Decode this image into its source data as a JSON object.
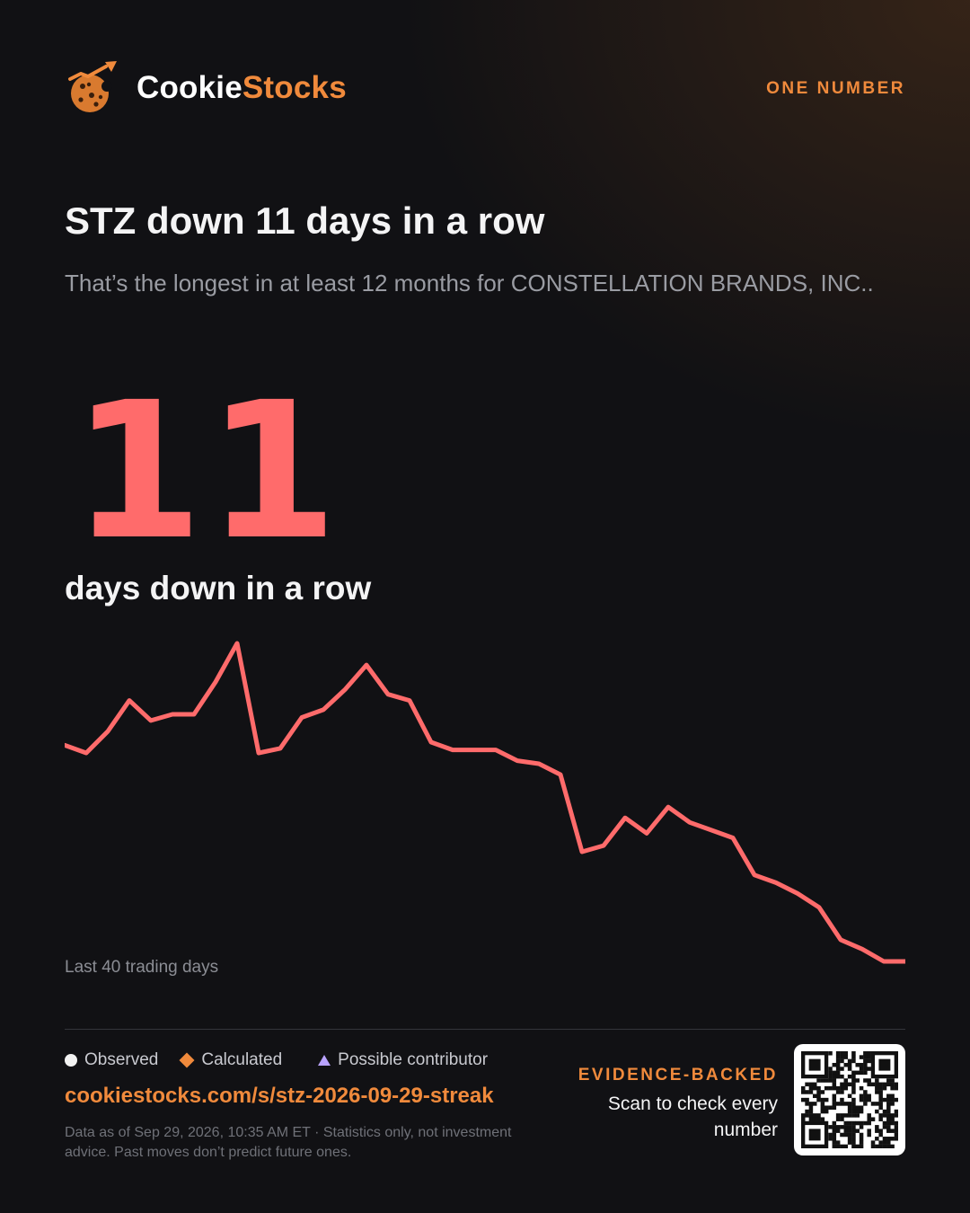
{
  "brand": {
    "name_part1": "Cookie",
    "name_part2": "Stocks",
    "eyebrow": "ONE NUMBER"
  },
  "headline": "STZ down 11 days in a row",
  "subtitle": "That’s the longest in at least 12 months for CONSTELLATION BRANDS, INC..",
  "big_number": {
    "value": "11",
    "label": "days down in a row"
  },
  "chart_data": {
    "type": "line",
    "caption": "Last 40 trading days",
    "grid": false,
    "legend": false,
    "x": [
      1,
      2,
      3,
      4,
      5,
      6,
      7,
      8,
      9,
      10,
      11,
      12,
      13,
      14,
      15,
      16,
      17,
      18,
      19,
      20,
      21,
      22,
      23,
      24,
      25,
      26,
      27,
      28,
      29,
      30,
      31,
      32,
      33,
      34,
      35,
      36,
      37,
      38,
      39,
      40
    ],
    "series": [
      {
        "color": "#ff6b6b",
        "values": [
          71.3,
          70.8,
          72.2,
          74.2,
          72.9,
          73.3,
          73.3,
          75.4,
          77.9,
          70.8,
          71.1,
          73.1,
          73.6,
          74.9,
          76.5,
          74.6,
          74.2,
          71.5,
          71.0,
          71.0,
          71.0,
          70.3,
          70.1,
          69.4,
          64.4,
          64.8,
          66.6,
          65.6,
          67.3,
          66.3,
          65.8,
          65.3,
          62.9,
          62.4,
          61.7,
          60.8,
          58.7,
          58.1,
          57.3,
          57.3
        ]
      }
    ]
  },
  "legend": {
    "observed": "Observed",
    "calculated": "Calculated",
    "possible": "Possible contributor"
  },
  "footer": {
    "url": "cookiestocks.com/s/stz-2026-09-29-streak",
    "disclaimer": "Data as of Sep 29, 2026, 10:35 AM ET · Statistics only, not investment advice. Past moves don’t predict future ones.",
    "evidence_title": "EVIDENCE-BACKED",
    "evidence_text": "Scan to check every number"
  },
  "icons": {
    "logo": "cookie-chart-icon",
    "qr": "qr-code-icon"
  }
}
